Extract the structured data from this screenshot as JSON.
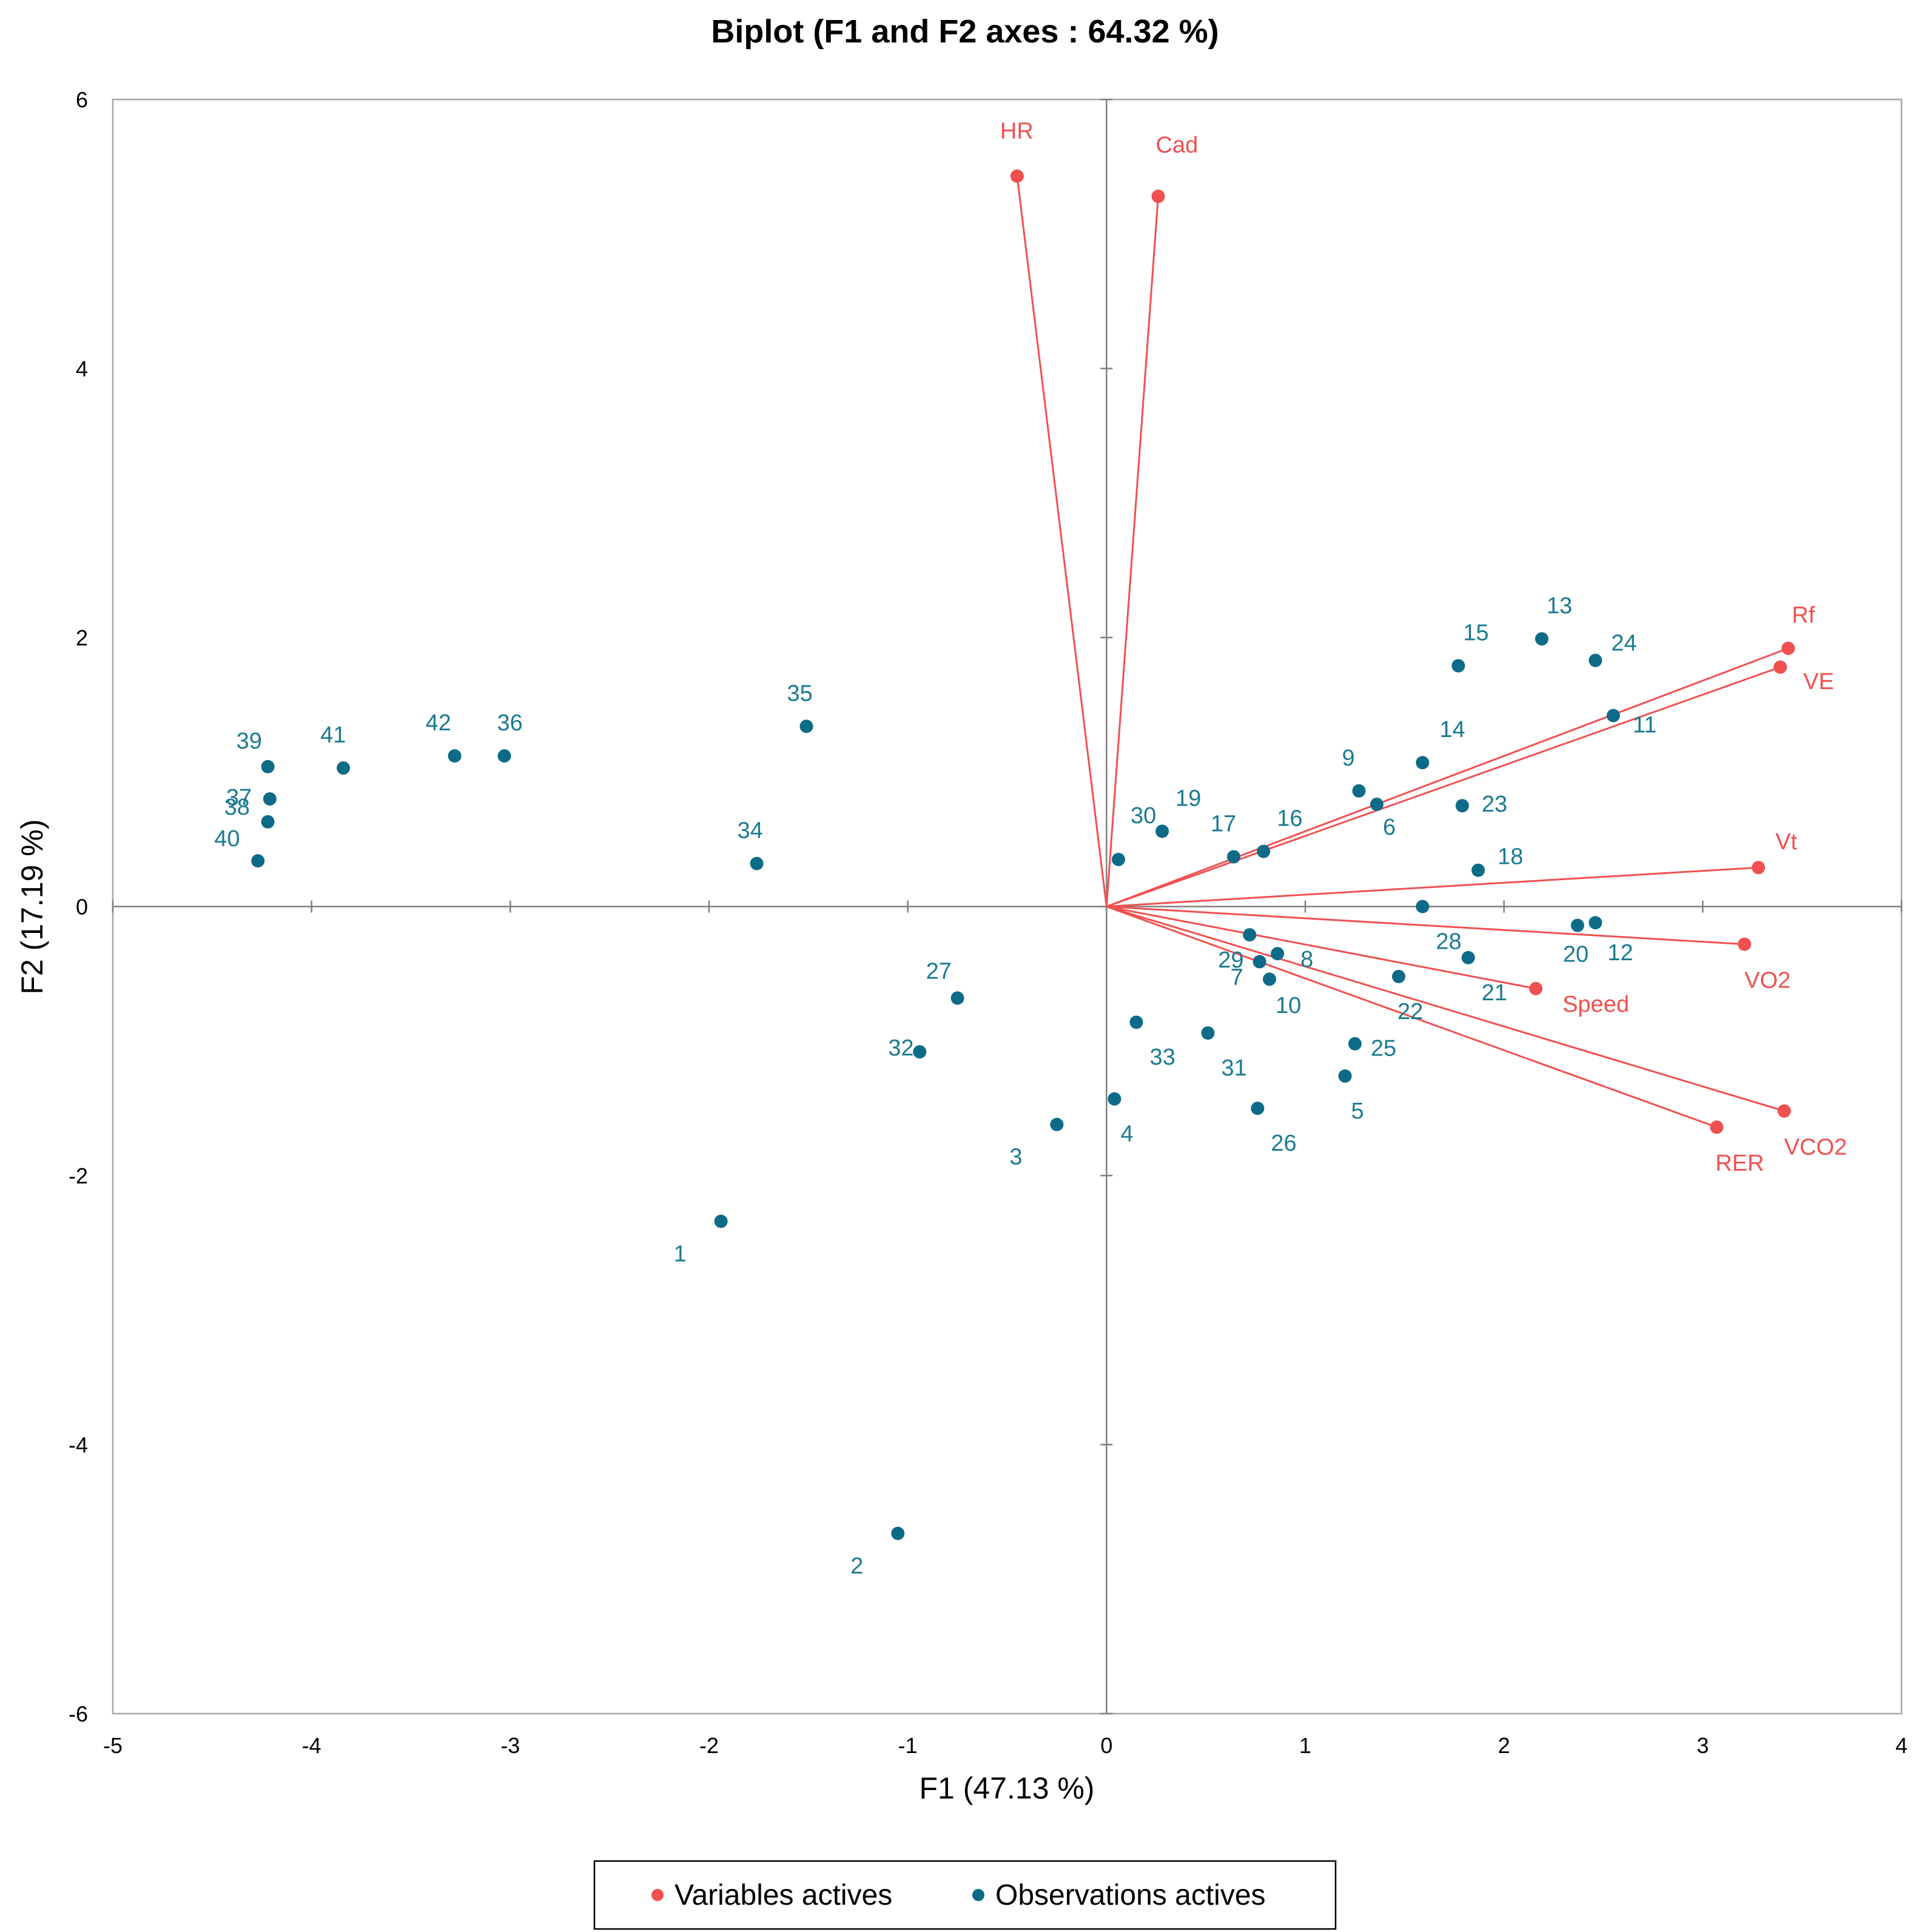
{
  "colors": {
    "variable": "#f0504f",
    "observation": "#0e6b87",
    "obs_label": "#1a7a90",
    "frame": "#a6a6a6",
    "axis": "#7f7f7f"
  },
  "chart_data": {
    "type": "scatter",
    "title": "Biplot (F1 and F2 axes : 64.32 %)",
    "xlabel": "F1 (47.13 %)",
    "ylabel": "F2 (17.19 %)",
    "xlim": [
      -5,
      4
    ],
    "ylim": [
      -6,
      6
    ],
    "xticks": [
      -5,
      -4,
      -3,
      -2,
      -1,
      0,
      1,
      2,
      3,
      4
    ],
    "yticks": [
      -6,
      -4,
      -2,
      0,
      2,
      4,
      6
    ],
    "grid": false,
    "legend": {
      "position": "bottom",
      "entries": [
        "Variables actives",
        "Observations actives"
      ]
    },
    "variables": [
      {
        "label": "HR",
        "x": -0.45,
        "y": 5.43
      },
      {
        "label": "Cad",
        "x": 0.26,
        "y": 5.28
      },
      {
        "label": "Rf",
        "x": 3.43,
        "y": 1.92
      },
      {
        "label": "VE",
        "x": 3.39,
        "y": 1.78
      },
      {
        "label": "Vt",
        "x": 3.28,
        "y": 0.29
      },
      {
        "label": "VO2",
        "x": 3.21,
        "y": -0.28
      },
      {
        "label": "Speed",
        "x": 2.16,
        "y": -0.61
      },
      {
        "label": "VCO2",
        "x": 3.41,
        "y": -1.52
      },
      {
        "label": "RER",
        "x": 3.07,
        "y": -1.64
      }
    ],
    "observations": [
      {
        "label": "1",
        "x": -1.94,
        "y": -2.34
      },
      {
        "label": "2",
        "x": -1.05,
        "y": -4.66
      },
      {
        "label": "3",
        "x": -0.25,
        "y": -1.62
      },
      {
        "label": "4",
        "x": 0.04,
        "y": -1.43
      },
      {
        "label": "5",
        "x": 1.2,
        "y": -1.26
      },
      {
        "label": "6",
        "x": 1.36,
        "y": 0.76
      },
      {
        "label": "7",
        "x": 0.77,
        "y": -0.41
      },
      {
        "label": "8",
        "x": 0.86,
        "y": -0.35
      },
      {
        "label": "9",
        "x": 1.27,
        "y": 0.86
      },
      {
        "label": "10",
        "x": 0.82,
        "y": -0.54
      },
      {
        "label": "11",
        "x": 2.55,
        "y": 1.42
      },
      {
        "label": "12",
        "x": 2.46,
        "y": -0.12
      },
      {
        "label": "13",
        "x": 2.19,
        "y": 1.99
      },
      {
        "label": "14",
        "x": 1.59,
        "y": 1.07
      },
      {
        "label": "15",
        "x": 1.77,
        "y": 1.79
      },
      {
        "label": "16",
        "x": 0.79,
        "y": 0.41
      },
      {
        "label": "17",
        "x": 0.64,
        "y": 0.37
      },
      {
        "label": "18",
        "x": 1.87,
        "y": 0.27
      },
      {
        "label": "19",
        "x": 0.28,
        "y": 0.56
      },
      {
        "label": "20",
        "x": 2.37,
        "y": -0.14
      },
      {
        "label": "21",
        "x": 1.82,
        "y": -0.38
      },
      {
        "label": "22",
        "x": 1.47,
        "y": -0.52
      },
      {
        "label": "23",
        "x": 1.79,
        "y": 0.75
      },
      {
        "label": "24",
        "x": 2.46,
        "y": 1.83
      },
      {
        "label": "25",
        "x": 1.25,
        "y": -1.02
      },
      {
        "label": "26",
        "x": 0.76,
        "y": -1.5
      },
      {
        "label": "27",
        "x": -0.75,
        "y": -0.68
      },
      {
        "label": "28",
        "x": 1.59,
        "y": 0.0
      },
      {
        "label": "29",
        "x": 0.72,
        "y": -0.21
      },
      {
        "label": "30",
        "x": 0.06,
        "y": 0.35
      },
      {
        "label": "31",
        "x": 0.51,
        "y": -0.94
      },
      {
        "label": "32",
        "x": -0.94,
        "y": -1.08
      },
      {
        "label": "33",
        "x": 0.15,
        "y": -0.86
      },
      {
        "label": "34",
        "x": -1.76,
        "y": 0.32
      },
      {
        "label": "35",
        "x": -1.51,
        "y": 1.34
      },
      {
        "label": "36",
        "x": -3.03,
        "y": 1.12
      },
      {
        "label": "37",
        "x": -4.21,
        "y": 0.8
      },
      {
        "label": "38",
        "x": -4.22,
        "y": 0.63
      },
      {
        "label": "39",
        "x": -4.22,
        "y": 1.04
      },
      {
        "label": "40",
        "x": -4.27,
        "y": 0.34
      },
      {
        "label": "41",
        "x": -3.84,
        "y": 1.03
      },
      {
        "label": "42",
        "x": -3.28,
        "y": 1.12
      }
    ]
  }
}
